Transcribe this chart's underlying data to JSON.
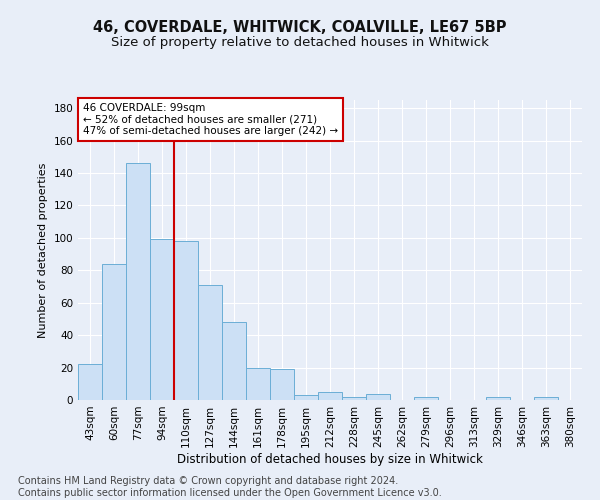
{
  "title1": "46, COVERDALE, WHITWICK, COALVILLE, LE67 5BP",
  "title2": "Size of property relative to detached houses in Whitwick",
  "xlabel": "Distribution of detached houses by size in Whitwick",
  "ylabel": "Number of detached properties",
  "categories": [
    "43sqm",
    "60sqm",
    "77sqm",
    "94sqm",
    "110sqm",
    "127sqm",
    "144sqm",
    "161sqm",
    "178sqm",
    "195sqm",
    "212sqm",
    "228sqm",
    "245sqm",
    "262sqm",
    "279sqm",
    "296sqm",
    "313sqm",
    "329sqm",
    "346sqm",
    "363sqm",
    "380sqm"
  ],
  "values": [
    22,
    84,
    146,
    99,
    98,
    71,
    48,
    20,
    19,
    3,
    5,
    2,
    4,
    0,
    2,
    0,
    0,
    2,
    0,
    2,
    0
  ],
  "bar_color": "#cce0f5",
  "bar_edge_color": "#6baed6",
  "vline_color": "#cc0000",
  "annotation_text": "46 COVERDALE: 99sqm\n← 52% of detached houses are smaller (271)\n47% of semi-detached houses are larger (242) →",
  "annotation_box_color": "#ffffff",
  "annotation_box_edge_color": "#cc0000",
  "ylim": [
    0,
    185
  ],
  "yticks": [
    0,
    20,
    40,
    60,
    80,
    100,
    120,
    140,
    160,
    180
  ],
  "footer": "Contains HM Land Registry data © Crown copyright and database right 2024.\nContains public sector information licensed under the Open Government Licence v3.0.",
  "background_color": "#e8eef8",
  "plot_bg_color": "#e8eef8",
  "grid_color": "#ffffff",
  "title1_fontsize": 10.5,
  "title2_fontsize": 9.5,
  "xlabel_fontsize": 8.5,
  "ylabel_fontsize": 8,
  "tick_fontsize": 7.5,
  "footer_fontsize": 7,
  "annotation_fontsize": 7.5
}
